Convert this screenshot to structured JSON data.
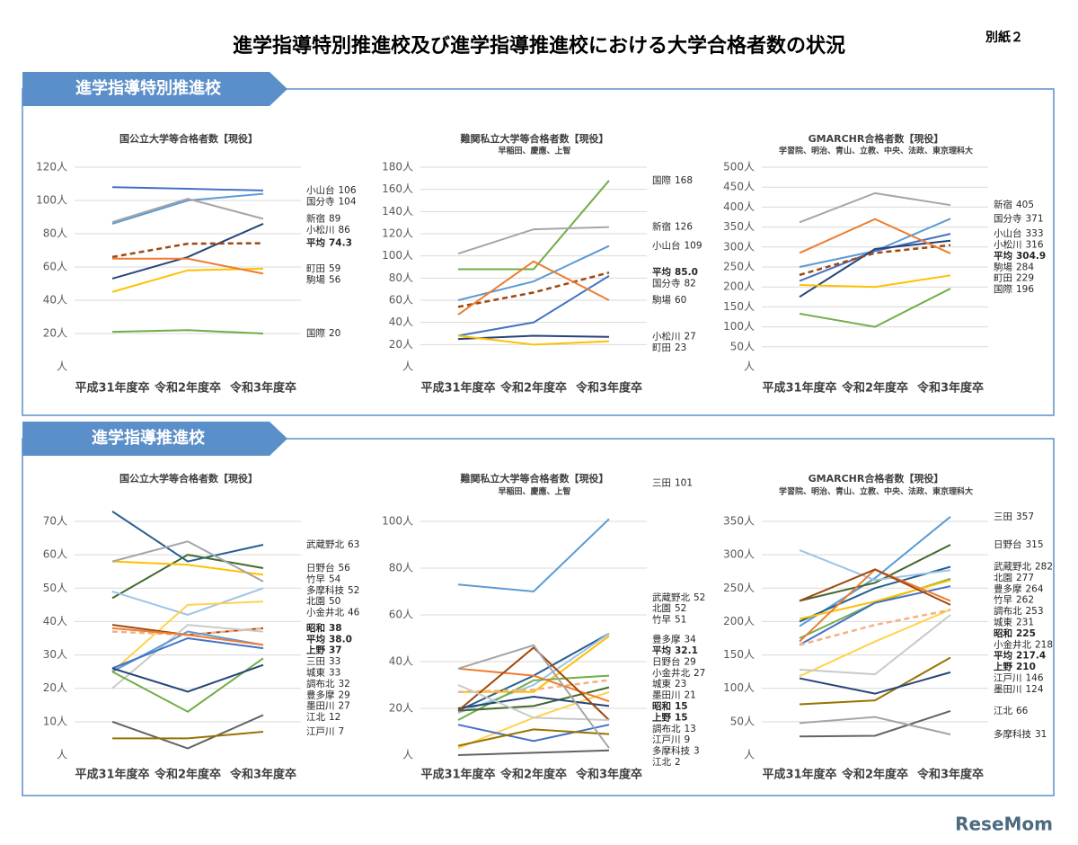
{
  "header": {
    "title": "進学指導特別推進校及び進学指導推進校における大学合格者数の状況",
    "attachment": "別紙２",
    "watermark": "ReseMom"
  },
  "sections": [
    {
      "title": "進学指導特別推進校"
    },
    {
      "title": "進学指導推進校"
    }
  ],
  "chart_data": [
    {
      "type": "line",
      "title": "国公立大学等合格者数【現役】",
      "categories": [
        "平成31年度卒",
        "令和2年度卒",
        "令和3年度卒"
      ],
      "ylim": [
        0,
        120
      ],
      "yticks": [
        {
          "value": 0,
          "label": "人"
        },
        {
          "value": 20,
          "label": "20人"
        },
        {
          "value": 40,
          "label": "40人"
        },
        {
          "value": 60,
          "label": "60人"
        },
        {
          "value": 80,
          "label": "80人"
        },
        {
          "value": 100,
          "label": "100人"
        },
        {
          "value": 120,
          "label": "120人"
        }
      ],
      "grid": true,
      "series": [
        {
          "name": "小山台",
          "color": "#4472c4",
          "values": [
            108,
            107,
            106
          ]
        },
        {
          "name": "国分寺",
          "color": "#5b9bd5",
          "values": [
            86,
            100,
            104
          ]
        },
        {
          "name": "新宿",
          "color": "#a5a5a5",
          "values": [
            87,
            101,
            89
          ]
        },
        {
          "name": "小松川",
          "color": "#264478",
          "values": [
            53,
            66,
            86
          ]
        },
        {
          "name": "平均",
          "color": "#9e480e",
          "dash": true,
          "bold": true,
          "values": [
            66,
            74,
            74.3
          ]
        },
        {
          "name": "町田",
          "color": "#ffc000",
          "values": [
            45,
            58,
            59
          ]
        },
        {
          "name": "駒場",
          "color": "#ed7d31",
          "values": [
            65,
            65,
            56
          ]
        },
        {
          "name": "国際",
          "color": "#70ad47",
          "values": [
            21,
            22,
            20
          ]
        }
      ]
    },
    {
      "type": "line",
      "title": "難関私立大学等合格者数【現役】",
      "subtitle": "早稲田、慶應、上智",
      "categories": [
        "平成31年度卒",
        "令和2年度卒",
        "令和3年度卒"
      ],
      "ylim": [
        0,
        180
      ],
      "yticks": [
        {
          "value": 0,
          "label": "人"
        },
        {
          "value": 20,
          "label": "20人"
        },
        {
          "value": 40,
          "label": "40人"
        },
        {
          "value": 60,
          "label": "60人"
        },
        {
          "value": 80,
          "label": "80人"
        },
        {
          "value": 100,
          "label": "100人"
        },
        {
          "value": 120,
          "label": "120人"
        },
        {
          "value": 140,
          "label": "140人"
        },
        {
          "value": 160,
          "label": "160人"
        },
        {
          "value": 180,
          "label": "180人"
        }
      ],
      "grid": true,
      "series": [
        {
          "name": "国際",
          "color": "#70ad47",
          "values": [
            88,
            88,
            168
          ]
        },
        {
          "name": "新宿",
          "color": "#a5a5a5",
          "values": [
            102,
            124,
            126
          ]
        },
        {
          "name": "小山台",
          "color": "#5b9bd5",
          "values": [
            60,
            77,
            109
          ]
        },
        {
          "name": "平均",
          "color": "#9e480e",
          "dash": true,
          "bold": true,
          "values": [
            54,
            67,
            85
          ],
          "value_labels": [
            null,
            null,
            "85.0"
          ]
        },
        {
          "name": "国分寺",
          "color": "#4472c4",
          "values": [
            28,
            40,
            82
          ]
        },
        {
          "name": "駒場",
          "color": "#ed7d31",
          "values": [
            47,
            95,
            60
          ]
        },
        {
          "name": "小松川",
          "color": "#264478",
          "values": [
            25,
            28,
            27
          ]
        },
        {
          "name": "町田",
          "color": "#ffc000",
          "values": [
            28,
            20,
            23
          ]
        }
      ]
    },
    {
      "type": "line",
      "title": "GMARCHR合格者数【現役】",
      "subtitle": "学習院、明治、青山、立教、中央、法政、東京理科大",
      "categories": [
        "平成31年度卒",
        "令和2年度卒",
        "令和3年度卒"
      ],
      "ylim": [
        0,
        500
      ],
      "yticks": [
        {
          "value": 0,
          "label": "人"
        },
        {
          "value": 50,
          "label": "50人"
        },
        {
          "value": 100,
          "label": "100人"
        },
        {
          "value": 150,
          "label": "150人"
        },
        {
          "value": 200,
          "label": "200人"
        },
        {
          "value": 250,
          "label": "250人"
        },
        {
          "value": 300,
          "label": "300人"
        },
        {
          "value": 350,
          "label": "350人"
        },
        {
          "value": 400,
          "label": "400人"
        },
        {
          "value": 450,
          "label": "450人"
        },
        {
          "value": 500,
          "label": "500人"
        }
      ],
      "grid": true,
      "series": [
        {
          "name": "新宿",
          "color": "#a5a5a5",
          "values": [
            362,
            435,
            405
          ]
        },
        {
          "name": "国分寺",
          "color": "#5b9bd5",
          "values": [
            250,
            290,
            371
          ]
        },
        {
          "name": "小山台",
          "color": "#4472c4",
          "values": [
            215,
            290,
            333
          ]
        },
        {
          "name": "小松川",
          "color": "#264478",
          "values": [
            175,
            295,
            316
          ]
        },
        {
          "name": "平均",
          "color": "#9e480e",
          "dash": true,
          "bold": true,
          "values": [
            230,
            285,
            304.9
          ]
        },
        {
          "name": "駒場",
          "color": "#ed7d31",
          "values": [
            285,
            370,
            284
          ]
        },
        {
          "name": "町田",
          "color": "#ffc000",
          "values": [
            205,
            200,
            229
          ]
        },
        {
          "name": "国際",
          "color": "#70ad47",
          "values": [
            133,
            100,
            196
          ]
        }
      ]
    },
    {
      "type": "line",
      "title": "国公立大学等合格者数【現役】",
      "categories": [
        "平成31年度卒",
        "令和2年度卒",
        "令和3年度卒"
      ],
      "ylim": [
        0,
        70
      ],
      "yticks": [
        {
          "value": 0,
          "label": "人"
        },
        {
          "value": 10,
          "label": "10人"
        },
        {
          "value": 20,
          "label": "20人"
        },
        {
          "value": 30,
          "label": "30人"
        },
        {
          "value": 40,
          "label": "40人"
        },
        {
          "value": 50,
          "label": "50人"
        },
        {
          "value": 60,
          "label": "60人"
        },
        {
          "value": 70,
          "label": "70人"
        }
      ],
      "grid": true,
      "series": [
        {
          "name": "武蔵野北",
          "color": "#255e91",
          "values": [
            73,
            58,
            63
          ]
        },
        {
          "name": "日野台",
          "color": "#43682b",
          "values": [
            47,
            60,
            56
          ]
        },
        {
          "name": "竹早",
          "color": "#ffc000",
          "values": [
            58,
            57,
            54
          ]
        },
        {
          "name": "多摩科技",
          "color": "#a5a5a5",
          "values": [
            58,
            64,
            52
          ]
        },
        {
          "name": "北園",
          "color": "#9dc3e6",
          "values": [
            49,
            42,
            50
          ]
        },
        {
          "name": "小金井北",
          "color": "#ffd34d",
          "values": [
            25,
            45,
            46
          ]
        },
        {
          "name": "昭和",
          "color": "#9e480e",
          "bold": true,
          "values": [
            39,
            36,
            38
          ]
        },
        {
          "name": "平均",
          "color": "#f4b183",
          "dash": true,
          "bold": true,
          "values": [
            37,
            36,
            38
          ],
          "value_labels": [
            null,
            null,
            "38.0"
          ]
        },
        {
          "name": "上野",
          "color": "#c9c9c9",
          "bold": true,
          "values": [
            20,
            39,
            37
          ]
        },
        {
          "name": "三田",
          "color": "#5b9bd5",
          "values": [
            25,
            37,
            33
          ]
        },
        {
          "name": "城東",
          "color": "#ed7d31",
          "values": [
            38,
            36,
            33
          ]
        },
        {
          "name": "調布北",
          "color": "#4472c4",
          "values": [
            26,
            35,
            32
          ]
        },
        {
          "name": "豊多摩",
          "color": "#70ad47",
          "values": [
            25,
            13,
            29
          ]
        },
        {
          "name": "墨田川",
          "color": "#264478",
          "values": [
            26,
            19,
            27
          ]
        },
        {
          "name": "江北",
          "color": "#636363",
          "values": [
            10,
            2,
            12
          ]
        },
        {
          "name": "江戸川",
          "color": "#997300",
          "values": [
            5,
            5,
            7
          ]
        }
      ]
    },
    {
      "type": "line",
      "title": "難関私立大学等合格者数【現役】",
      "subtitle": "早稲田、慶應、上智",
      "categories": [
        "平成31年度卒",
        "令和2年度卒",
        "令和3年度卒"
      ],
      "ylim": [
        0,
        100
      ],
      "yticks": [
        {
          "value": 0,
          "label": "人"
        },
        {
          "value": 20,
          "label": "20人"
        },
        {
          "value": 40,
          "label": "40人"
        },
        {
          "value": 60,
          "label": "60人"
        },
        {
          "value": 80,
          "label": "80人"
        },
        {
          "value": 100,
          "label": "100人"
        }
      ],
      "grid": true,
      "series": [
        {
          "name": "三田",
          "color": "#5b9bd5",
          "values": [
            73,
            70,
            101
          ]
        },
        {
          "name": "武蔵野北",
          "color": "#255e91",
          "values": [
            19,
            34,
            52
          ]
        },
        {
          "name": "北園",
          "color": "#9dc3e6",
          "values": [
            18,
            30,
            52
          ]
        },
        {
          "name": "竹早",
          "color": "#ffc000",
          "values": [
            27,
            27,
            51
          ]
        },
        {
          "name": "豊多摩",
          "color": "#70ad47",
          "values": [
            15,
            32,
            34
          ]
        },
        {
          "name": "平均",
          "color": "#f4b183",
          "dash": true,
          "bold": true,
          "values": [
            27,
            28,
            32.1
          ]
        },
        {
          "name": "日野台",
          "color": "#43682b",
          "values": [
            19,
            21,
            29
          ]
        },
        {
          "name": "小金井北",
          "color": "#ffd34d",
          "values": [
            3,
            16,
            27
          ]
        },
        {
          "name": "城東",
          "color": "#ed7d31",
          "values": [
            37,
            34,
            23
          ]
        },
        {
          "name": "墨田川",
          "color": "#264478",
          "values": [
            20,
            25,
            21
          ]
        },
        {
          "name": "昭和",
          "color": "#9e480e",
          "bold": true,
          "values": [
            19,
            46,
            15
          ]
        },
        {
          "name": "上野",
          "color": "#c9c9c9",
          "bold": true,
          "values": [
            30,
            16,
            15
          ]
        },
        {
          "name": "調布北",
          "color": "#4472c4",
          "values": [
            13,
            6,
            13
          ]
        },
        {
          "name": "江戸川",
          "color": "#997300",
          "values": [
            4,
            11,
            9
          ]
        },
        {
          "name": "多摩科技",
          "color": "#a5a5a5",
          "values": [
            37,
            47,
            3
          ]
        },
        {
          "name": "江北",
          "color": "#636363",
          "values": [
            0,
            1,
            2
          ]
        }
      ]
    },
    {
      "type": "line",
      "title": "GMARCHR合格者数【現役】",
      "subtitle": "学習院、明治、青山、立教、中央、法政、東京理科大",
      "categories": [
        "平成31年度卒",
        "令和2年度卒",
        "令和3年度卒"
      ],
      "ylim": [
        0,
        350
      ],
      "yticks": [
        {
          "value": 0,
          "label": "人"
        },
        {
          "value": 50,
          "label": "50人"
        },
        {
          "value": 100,
          "label": "100人"
        },
        {
          "value": 150,
          "label": "150人"
        },
        {
          "value": 200,
          "label": "200人"
        },
        {
          "value": 250,
          "label": "250人"
        },
        {
          "value": 300,
          "label": "300人"
        },
        {
          "value": 350,
          "label": "350人"
        }
      ],
      "grid": true,
      "series": [
        {
          "name": "三田",
          "color": "#5b9bd5",
          "values": [
            193,
            265,
            357
          ]
        },
        {
          "name": "日野台",
          "color": "#43682b",
          "values": [
            231,
            258,
            315
          ]
        },
        {
          "name": "武蔵野北",
          "color": "#255e91",
          "values": [
            200,
            250,
            282
          ]
        },
        {
          "name": "北園",
          "color": "#9dc3e6",
          "values": [
            307,
            262,
            277
          ]
        },
        {
          "name": "豊多摩",
          "color": "#70ad47",
          "values": [
            175,
            228,
            264
          ]
        },
        {
          "name": "竹早",
          "color": "#ffc000",
          "values": [
            204,
            230,
            262
          ]
        },
        {
          "name": "調布北",
          "color": "#4472c4",
          "values": [
            165,
            228,
            253
          ]
        },
        {
          "name": "城東",
          "color": "#ed7d31",
          "values": [
            170,
            278,
            231
          ]
        },
        {
          "name": "昭和",
          "color": "#9e480e",
          "bold": true,
          "values": [
            231,
            278,
            225
          ]
        },
        {
          "name": "小金井北",
          "color": "#ffd34d",
          "values": [
            118,
            170,
            218
          ]
        },
        {
          "name": "平均",
          "color": "#f4b183",
          "dash": true,
          "bold": true,
          "values": [
            165,
            195,
            217.4
          ]
        },
        {
          "name": "上野",
          "color": "#c9c9c9",
          "bold": true,
          "values": [
            128,
            121,
            210
          ]
        },
        {
          "name": "江戸川",
          "color": "#997300",
          "values": [
            76,
            82,
            146
          ]
        },
        {
          "name": "墨田川",
          "color": "#264478",
          "values": [
            115,
            92,
            124
          ]
        },
        {
          "name": "江北",
          "color": "#636363",
          "values": [
            28,
            29,
            66
          ]
        },
        {
          "name": "多摩科技",
          "color": "#a5a5a5",
          "values": [
            48,
            57,
            31
          ]
        }
      ]
    }
  ]
}
